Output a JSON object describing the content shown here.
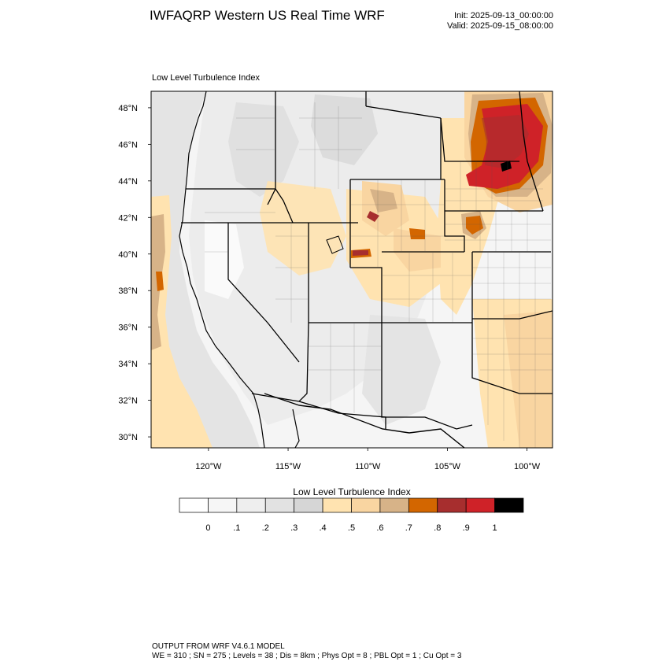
{
  "header": {
    "title": "IWFAQRP Western US Real Time WRF",
    "init": "Init: 2025-09-13_00:00:00",
    "valid": "Valid: 2025-09-15_08:00:00"
  },
  "map": {
    "field_title": "Low Level Turbulence Index",
    "lat_labels": [
      "48°N",
      "46°N",
      "44°N",
      "42°N",
      "40°N",
      "38°N",
      "36°N",
      "34°N",
      "32°N",
      "30°N"
    ],
    "lat_values": [
      48,
      46,
      44,
      42,
      40,
      38,
      36,
      34,
      32,
      30
    ],
    "lon_labels": [
      "120°W",
      "115°W",
      "110°W",
      "105°W",
      "100°W"
    ],
    "lon_values": [
      -120,
      -115,
      -110,
      -105,
      -100
    ],
    "extent": {
      "lon_min": -123.6,
      "lon_max": -98.4,
      "lat_min": 29.4,
      "lat_max": 48.9
    }
  },
  "colorbar": {
    "title": "Low Level Turbulence Index",
    "tick_labels": [
      "0",
      ".1",
      ".2",
      ".3",
      ".4",
      ".5",
      ".6",
      ".7",
      ".8",
      ".9",
      "1"
    ],
    "colors": [
      "#ffffff",
      "#f6f6f6",
      "#eeeeee",
      "#e2e2e2",
      "#d6d6d6",
      "#ffe3b0",
      "#f9d5a1",
      "#d7b388",
      "#d36600",
      "#a72e2e",
      "#cf2228",
      "#000000"
    ]
  },
  "footer": {
    "line1": "OUTPUT FROM WRF V4.6.1 MODEL",
    "line2": "WE = 310 ; SN = 275 ; Levels = 38 ; Dis = 8km ; Phys Opt = 8 ; PBL Opt = 1 ; Cu Opt = 3"
  }
}
